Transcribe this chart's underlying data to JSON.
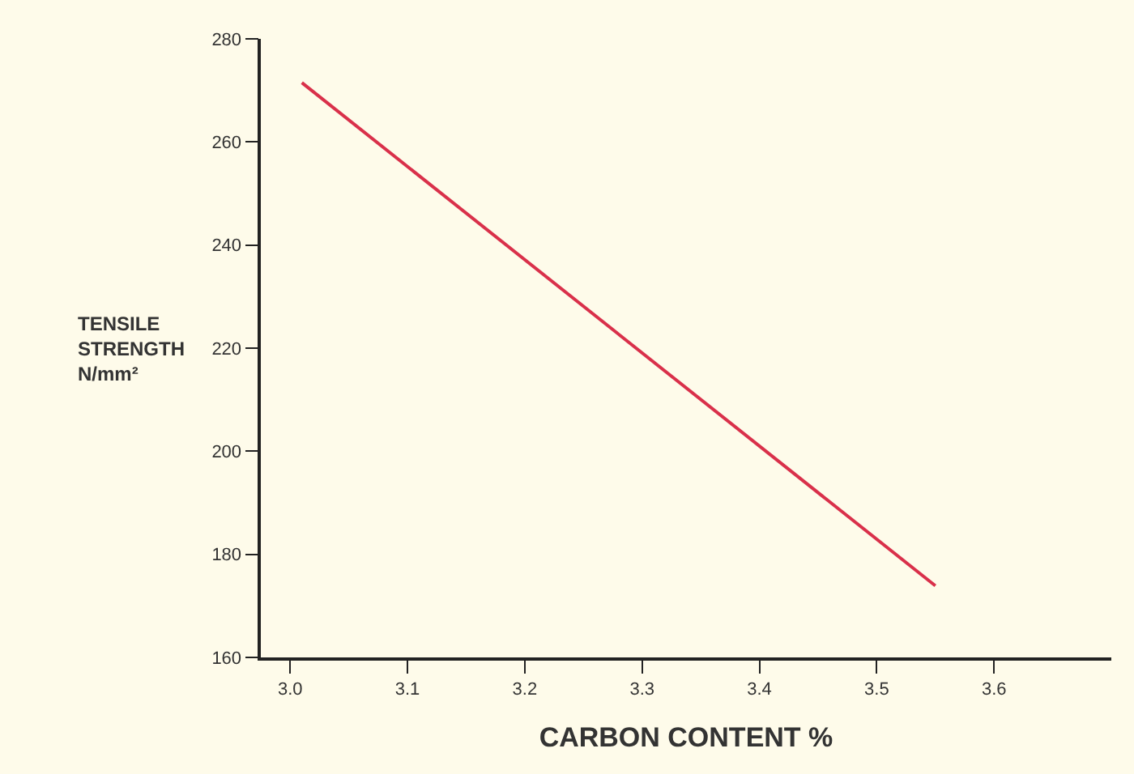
{
  "chart_data": {
    "type": "line",
    "xlabel": "CARBON CONTENT %",
    "ylabel": "TENSILE\nSTRENGTH\nN/mm²",
    "x": [
      3.01,
      3.55
    ],
    "series": [
      {
        "color": "#d9304a",
        "values": [
          271.5,
          173.9
        ]
      }
    ],
    "xlim": [
      2.975,
      3.7
    ],
    "xticks": [
      {
        "value": 3.0,
        "label": "3.0"
      },
      3.1,
      3.2,
      3.3,
      3.4,
      3.5,
      3.6
    ],
    "ylim": [
      160,
      280
    ],
    "yticks": [
      160,
      180,
      200,
      220,
      240,
      260,
      280
    ],
    "grid": false,
    "marker": "none",
    "line_style": "solid"
  }
}
